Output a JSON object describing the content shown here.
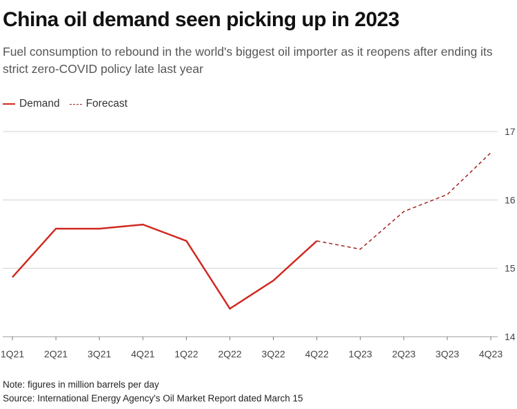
{
  "header": {
    "title": "China oil demand seen picking up in 2023",
    "subtitle": "Fuel consumption to rebound in the world's biggest oil importer as it reopens after ending its strict zero-COVID policy late last year"
  },
  "legend": {
    "demand_label": "Demand",
    "forecast_label": "Forecast"
  },
  "footer": {
    "note": "Note: figures in million barrels per day",
    "source": "Source: International Energy Agency's Oil Market Report dated March 15"
  },
  "colors": {
    "demand": "#d0281e",
    "forecast": "#a0201a",
    "grid": "#d0d0d0"
  },
  "chart_data": {
    "type": "line",
    "title": "China oil demand seen picking up in 2023",
    "categories": [
      "1Q21",
      "2Q21",
      "3Q21",
      "4Q21",
      "1Q22",
      "2Q22",
      "3Q22",
      "4Q22",
      "1Q23",
      "2Q23",
      "3Q23",
      "4Q23"
    ],
    "series": [
      {
        "name": "Demand",
        "style": "solid",
        "values": [
          14.87,
          15.58,
          15.58,
          15.64,
          15.4,
          14.41,
          14.82,
          15.4,
          null,
          null,
          null,
          null
        ]
      },
      {
        "name": "Forecast",
        "style": "dashed",
        "values": [
          null,
          null,
          null,
          null,
          null,
          null,
          null,
          15.4,
          15.28,
          15.83,
          16.08,
          16.69
        ]
      }
    ],
    "ylim": [
      14,
      17
    ],
    "yticks": [
      14,
      15,
      16,
      17
    ],
    "y_axis_position": "right",
    "grid": true,
    "legend_position": "top-left"
  }
}
